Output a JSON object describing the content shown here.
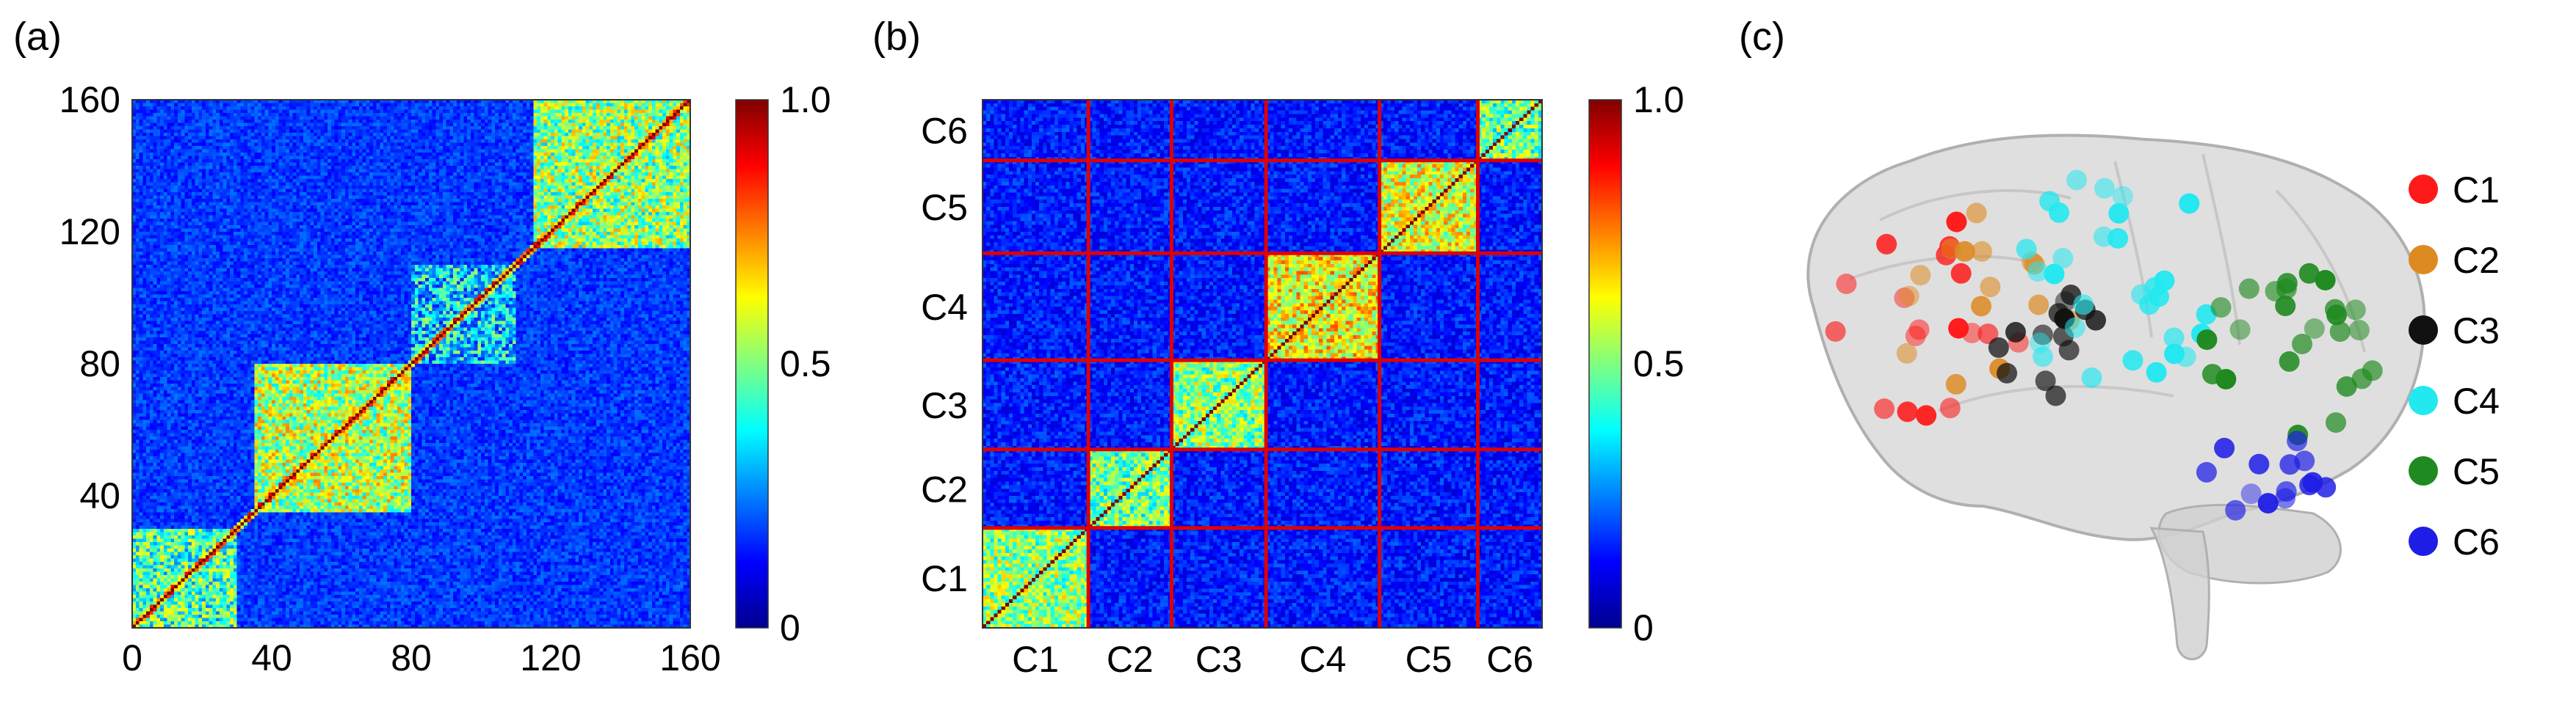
{
  "colors": {
    "colormap": [
      "#00008f",
      "#0000ff",
      "#0080ff",
      "#00ffff",
      "#80ff80",
      "#ffff00",
      "#ff8000",
      "#ff0000",
      "#800000"
    ],
    "divider": "#e00000",
    "brain_fill": "#d4d4d4",
    "brain_stroke": "#b0b0b0"
  },
  "chart_data": [
    {
      "type": "heatmap",
      "panel_label": "(a)",
      "title": "",
      "xlabel": "",
      "ylabel": "",
      "n_nodes": 160,
      "x_ticks": [
        0,
        40,
        80,
        120,
        160
      ],
      "y_ticks": [
        40,
        80,
        120,
        160
      ],
      "xlim": [
        0,
        160
      ],
      "ylim": [
        0,
        160
      ],
      "color_range": [
        0,
        1.0
      ],
      "colorbar_ticks": [
        "0",
        "0.5",
        "1.0"
      ],
      "colorbar": "right",
      "blocks": [
        {
          "from": 0,
          "to": 30,
          "mean_value": 0.35
        },
        {
          "from": 35,
          "to": 80,
          "mean_value": 0.5
        },
        {
          "from": 80,
          "to": 110,
          "mean_value": 0.2
        },
        {
          "from": 115,
          "to": 160,
          "mean_value": 0.45
        }
      ],
      "diagonal_value": 1.0
    },
    {
      "type": "heatmap",
      "panel_label": "(b)",
      "title": "",
      "xlabel": "",
      "ylabel": "",
      "n_nodes": 160,
      "color_range": [
        0,
        1.0
      ],
      "colorbar_ticks": [
        "0",
        "0.5",
        "1.0"
      ],
      "colorbar": "right",
      "diagonal_value": 1.0,
      "clusters": [
        {
          "label": "C1",
          "size": 28,
          "within_value": 0.45
        },
        {
          "label": "C2",
          "size": 22,
          "within_value": 0.42
        },
        {
          "label": "C3",
          "size": 25,
          "within_value": 0.45
        },
        {
          "label": "C4",
          "size": 30,
          "within_value": 0.6
        },
        {
          "label": "C5",
          "size": 26,
          "within_value": 0.55
        },
        {
          "label": "C6",
          "size": 17,
          "within_value": 0.4
        }
      ],
      "between_value": 0.12
    },
    {
      "type": "scatter",
      "panel_label": "(c)",
      "title": "",
      "legend_position": "right",
      "legend": [
        {
          "label": "C1",
          "color": "#ff1a1a"
        },
        {
          "label": "C2",
          "color": "#dd8a22"
        },
        {
          "label": "C3",
          "color": "#111111"
        },
        {
          "label": "C4",
          "color": "#22e8f0"
        },
        {
          "label": "C5",
          "color": "#1f8a1f"
        },
        {
          "label": "C6",
          "color": "#1e1ee6"
        }
      ]
    }
  ]
}
